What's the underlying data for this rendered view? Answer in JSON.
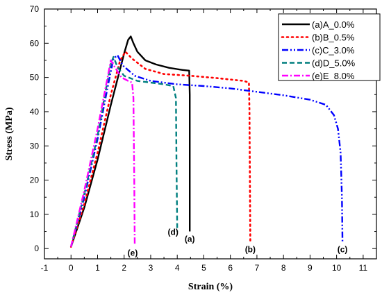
{
  "chart_data": {
    "type": "line",
    "xlabel": "Strain (%)",
    "ylabel": "Stress (MPa)",
    "xlim": [
      -1,
      11.5
    ],
    "ylim": [
      -3,
      70
    ],
    "xticks": [
      "-1",
      "0",
      "1",
      "2",
      "3",
      "4",
      "5",
      "6",
      "7",
      "8",
      "9",
      "10",
      "11"
    ],
    "yticks": [
      "0",
      "10",
      "20",
      "30",
      "40",
      "50",
      "60",
      "70"
    ],
    "legend_position": "top-right",
    "series": [
      {
        "name": "(a)A_0.0%",
        "end_label": "(a)",
        "color": "#000000",
        "dash": "solid",
        "points": [
          [
            0,
            0.5
          ],
          [
            0.5,
            12
          ],
          [
            1.0,
            26
          ],
          [
            1.5,
            42
          ],
          [
            1.8,
            51
          ],
          [
            2.0,
            57
          ],
          [
            2.15,
            61
          ],
          [
            2.25,
            62
          ],
          [
            2.35,
            60
          ],
          [
            2.5,
            57.5
          ],
          [
            2.8,
            55
          ],
          [
            3.2,
            53.8
          ],
          [
            3.7,
            52.8
          ],
          [
            4.2,
            52.2
          ],
          [
            4.45,
            52
          ],
          [
            4.47,
            45
          ],
          [
            4.47,
            5
          ]
        ]
      },
      {
        "name": "(b)B_0.5%",
        "end_label": "(b)",
        "color": "#ff0000",
        "dash": "dotted",
        "points": [
          [
            0,
            0.5
          ],
          [
            0.5,
            13
          ],
          [
            1.0,
            28
          ],
          [
            1.5,
            45
          ],
          [
            1.85,
            55
          ],
          [
            2.05,
            57.5
          ],
          [
            2.3,
            55.5
          ],
          [
            2.8,
            52.5
          ],
          [
            3.5,
            51
          ],
          [
            4.5,
            50.5
          ],
          [
            5.5,
            49.8
          ],
          [
            6.5,
            49
          ],
          [
            6.7,
            48.5
          ],
          [
            6.72,
            40
          ],
          [
            6.75,
            2
          ]
        ]
      },
      {
        "name": "(c)C_3.0%",
        "end_label": "(c)",
        "color": "#0000ff",
        "dash": "dashdotdot",
        "points": [
          [
            0,
            0.5
          ],
          [
            0.5,
            15
          ],
          [
            1.0,
            32
          ],
          [
            1.4,
            48
          ],
          [
            1.6,
            55.5
          ],
          [
            1.75,
            56.5
          ],
          [
            1.95,
            53.5
          ],
          [
            2.4,
            50.5
          ],
          [
            3.0,
            49
          ],
          [
            4.0,
            48
          ],
          [
            5.0,
            47.5
          ],
          [
            6.0,
            46.8
          ],
          [
            7.0,
            45.8
          ],
          [
            8.0,
            44.8
          ],
          [
            9.0,
            43.5
          ],
          [
            9.6,
            42
          ],
          [
            9.9,
            39
          ],
          [
            10.05,
            35
          ],
          [
            10.15,
            28
          ],
          [
            10.2,
            15
          ],
          [
            10.22,
            2
          ]
        ]
      },
      {
        "name": "(d)D_5.0%",
        "end_label": "(d)",
        "color": "#007f7f",
        "dash": "dash",
        "points": [
          [
            0,
            0.5
          ],
          [
            0.5,
            16
          ],
          [
            1.0,
            33
          ],
          [
            1.3,
            46
          ],
          [
            1.5,
            54
          ],
          [
            1.6,
            56
          ],
          [
            1.75,
            53
          ],
          [
            2.0,
            50.5
          ],
          [
            2.5,
            49
          ],
          [
            3.0,
            48.5
          ],
          [
            3.5,
            48
          ],
          [
            3.85,
            47.5
          ],
          [
            3.95,
            44
          ],
          [
            3.97,
            25
          ],
          [
            4.0,
            5
          ]
        ]
      },
      {
        "name": "(e)E_8.0%",
        "end_label": "(e)",
        "color": "#ff00ff",
        "dash": "dashdot",
        "points": [
          [
            0,
            0.5
          ],
          [
            0.5,
            17
          ],
          [
            1.0,
            35
          ],
          [
            1.3,
            47
          ],
          [
            1.5,
            55
          ],
          [
            1.65,
            53
          ],
          [
            1.9,
            50
          ],
          [
            2.15,
            49
          ],
          [
            2.3,
            48.5
          ],
          [
            2.35,
            44
          ],
          [
            2.38,
            20
          ],
          [
            2.4,
            1
          ]
        ]
      }
    ]
  }
}
